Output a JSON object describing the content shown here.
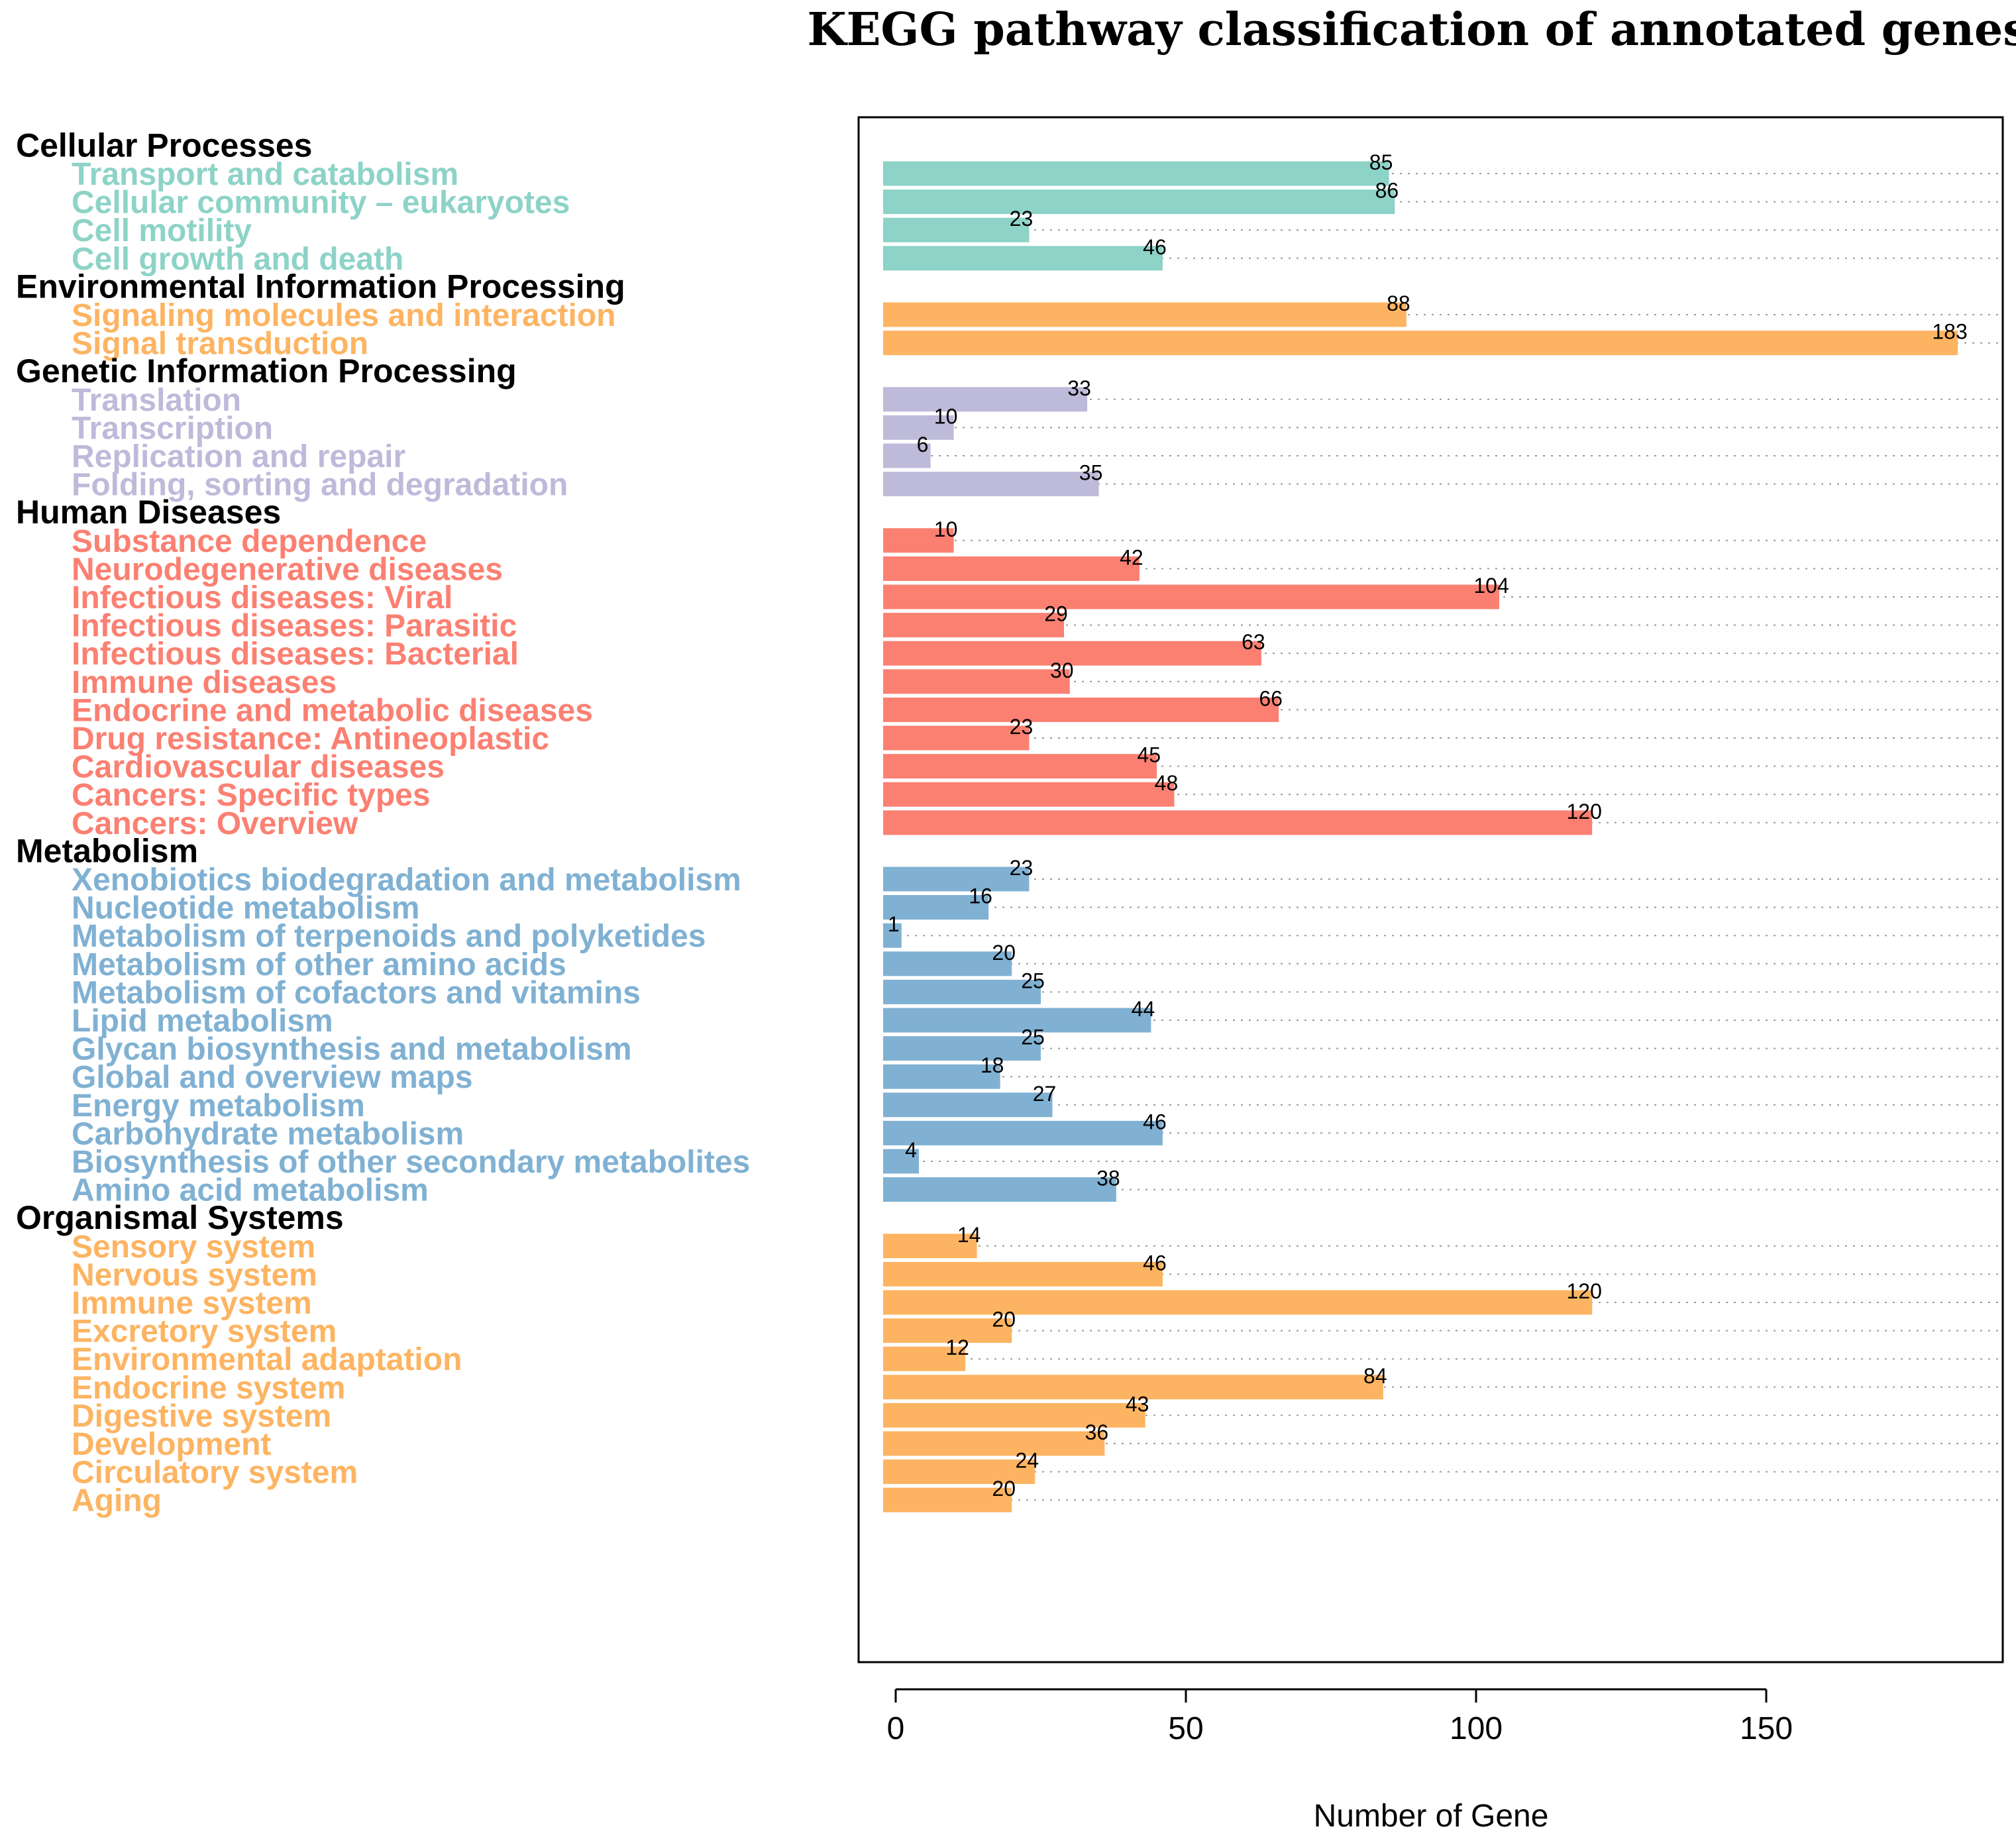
{
  "chart_data": {
    "type": "bar",
    "orientation": "horizontal",
    "title": "KEGG pathway classification of annotated genes",
    "xlabel": "Number of Gene",
    "ylabel": "",
    "xlim": [
      0,
      185
    ],
    "xticks": [
      0,
      50,
      100,
      150
    ],
    "grid": "dotted horizontal guide lines",
    "groups": [
      {
        "name": "Cellular Processes",
        "color": "#8dd3c7",
        "categories": [
          "Transport and catabolism",
          "Cellular community – eukaryotes",
          "Cell motility",
          "Cell growth and death"
        ],
        "values": [
          85,
          86,
          23,
          46
        ]
      },
      {
        "name": "Environmental Information Processing",
        "color": "#fdb462",
        "categories": [
          "Signaling molecules and interaction",
          "Signal transduction"
        ],
        "values": [
          88,
          183
        ]
      },
      {
        "name": "Genetic Information Processing",
        "color": "#bebada",
        "categories": [
          "Translation",
          "Transcription",
          "Replication and repair",
          "Folding, sorting and degradation"
        ],
        "values": [
          33,
          10,
          6,
          35
        ]
      },
      {
        "name": "Human Diseases",
        "color": "#fb8072",
        "categories": [
          "Substance dependence",
          "Neurodegenerative diseases",
          "Infectious diseases: Viral",
          "Infectious diseases: Parasitic",
          "Infectious diseases: Bacterial",
          "Immune diseases",
          "Endocrine and metabolic diseases",
          "Drug resistance: Antineoplastic",
          "Cardiovascular diseases",
          "Cancers: Specific types",
          "Cancers: Overview"
        ],
        "values": [
          10,
          42,
          104,
          29,
          63,
          30,
          66,
          23,
          45,
          48,
          120
        ]
      },
      {
        "name": "Metabolism",
        "color": "#80b1d3",
        "categories": [
          "Xenobiotics biodegradation and metabolism",
          "Nucleotide metabolism",
          "Metabolism of terpenoids and polyketides",
          "Metabolism of other amino acids",
          "Metabolism of cofactors and vitamins",
          "Lipid metabolism",
          "Glycan biosynthesis and metabolism",
          "Global and overview maps",
          "Energy metabolism",
          "Carbohydrate metabolism",
          "Biosynthesis of other secondary metabolites",
          "Amino acid metabolism"
        ],
        "values": [
          23,
          16,
          1,
          20,
          25,
          44,
          25,
          18,
          27,
          46,
          4,
          38
        ]
      },
      {
        "name": "Organismal Systems",
        "color": "#fdb462",
        "categories": [
          "Sensory system",
          "Nervous system",
          "Immune system",
          "Excretory system",
          "Environmental adaptation",
          "Endocrine system",
          "Digestive system",
          "Development",
          "Circulatory system",
          "Aging"
        ],
        "values": [
          14,
          46,
          120,
          20,
          12,
          84,
          43,
          36,
          24,
          20
        ]
      }
    ]
  }
}
